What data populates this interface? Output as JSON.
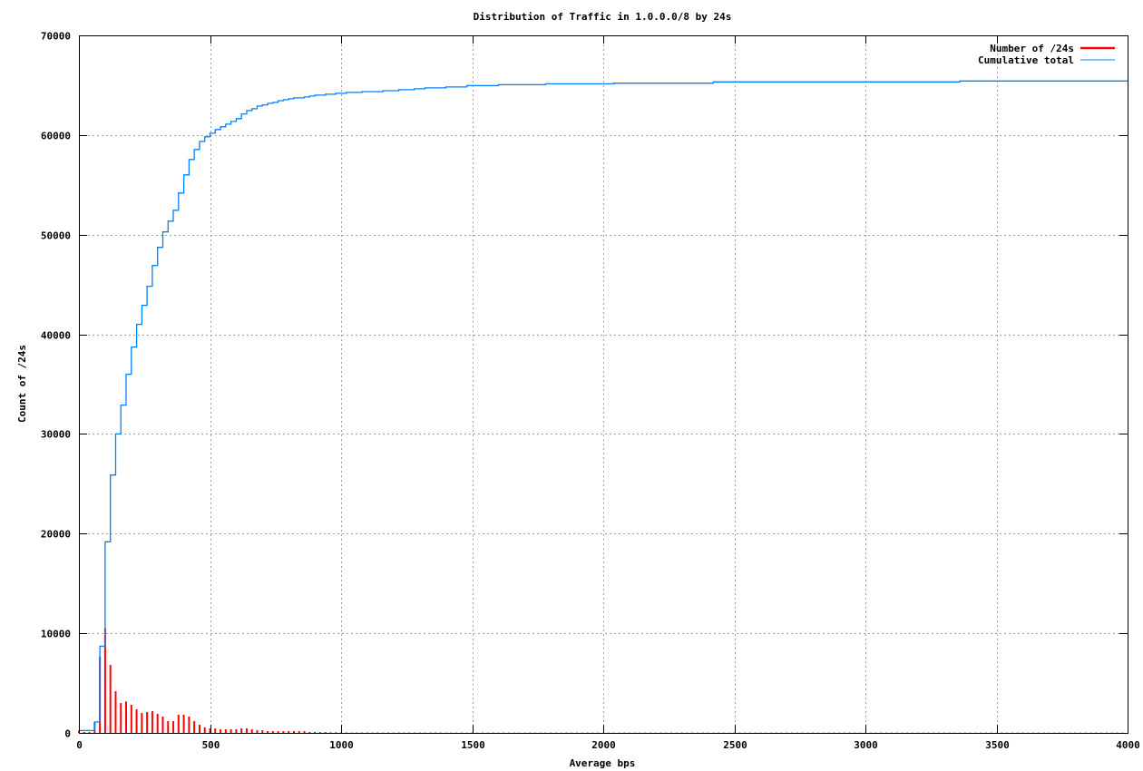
{
  "chart_data": {
    "type": "bar",
    "title": "Distribution of Traffic in 1.0.0.0/8 by 24s",
    "xlabel": "Average bps",
    "ylabel": "Count of /24s",
    "xlim": [
      0,
      4000
    ],
    "ylim": [
      0,
      70000
    ],
    "x_ticks": [
      "0",
      "500",
      "1000",
      "1500",
      "2000",
      "2500",
      "3000",
      "3500",
      "4000"
    ],
    "y_ticks": [
      "0",
      "10000",
      "20000",
      "30000",
      "40000",
      "50000",
      "60000",
      "70000"
    ],
    "grid": true,
    "legend_position": "top-right",
    "series": [
      {
        "name": "Number of /24s",
        "style": "impulses",
        "color": "#ff0000",
        "bin_width": 20,
        "x_start": 0,
        "values": [
          240,
          90,
          90,
          1090,
          7640,
          10510,
          6820,
          4180,
          3000,
          3150,
          2820,
          2360,
          2000,
          2090,
          2180,
          1910,
          1640,
          1180,
          1180,
          1820,
          1820,
          1640,
          1180,
          820,
          550,
          450,
          450,
          360,
          360,
          360,
          360,
          450,
          450,
          360,
          270,
          270,
          180,
          180,
          180,
          180,
          180,
          180,
          180,
          180,
          90,
          90,
          90,
          90,
          60,
          60,
          40,
          40,
          40,
          40,
          40,
          40,
          40,
          40,
          40,
          40,
          40,
          40,
          40,
          40,
          40,
          40,
          40,
          40,
          40,
          40,
          30,
          30,
          30,
          30,
          30,
          30,
          30,
          30,
          30,
          30,
          30,
          30,
          30,
          30,
          30,
          30,
          30,
          30,
          30,
          30,
          30,
          30,
          30,
          30,
          30,
          30,
          30,
          30,
          30,
          30,
          30,
          30,
          30,
          30,
          30,
          30,
          30,
          30,
          30,
          30,
          30,
          30,
          30,
          30,
          30,
          30,
          30,
          30,
          30,
          30,
          30,
          30,
          30,
          30,
          30,
          30,
          30,
          30,
          30,
          30,
          30,
          30,
          30,
          30,
          30,
          30,
          30,
          30,
          30,
          30,
          30,
          30,
          30,
          30,
          30,
          30,
          30,
          30,
          30,
          30,
          30,
          30,
          30,
          30,
          30,
          30,
          30,
          30,
          30,
          30,
          30,
          30,
          30,
          30,
          30,
          30,
          30,
          30,
          30,
          30,
          30,
          30,
          30,
          30,
          30,
          30,
          30,
          30,
          30,
          30,
          30,
          30,
          30,
          30,
          30,
          30,
          30,
          30,
          30,
          30,
          30,
          30,
          30,
          30,
          30,
          30,
          30,
          30,
          30,
          30
        ]
      },
      {
        "name": "Cumulative total",
        "style": "steps",
        "color": "#0080ff",
        "points": [
          [
            0,
            240
          ],
          [
            60,
            1100
          ],
          [
            80,
            8700
          ],
          [
            100,
            19180
          ],
          [
            120,
            25880
          ],
          [
            140,
            30000
          ],
          [
            160,
            32900
          ],
          [
            180,
            35990
          ],
          [
            200,
            38720
          ],
          [
            220,
            41000
          ],
          [
            240,
            42910
          ],
          [
            260,
            44820
          ],
          [
            280,
            46910
          ],
          [
            300,
            48730
          ],
          [
            320,
            50270
          ],
          [
            340,
            51360
          ],
          [
            360,
            52450
          ],
          [
            380,
            54180
          ],
          [
            400,
            56000
          ],
          [
            420,
            57550
          ],
          [
            440,
            58550
          ],
          [
            460,
            59360
          ],
          [
            480,
            59820
          ],
          [
            500,
            60180
          ],
          [
            520,
            60550
          ],
          [
            540,
            60820
          ],
          [
            560,
            61090
          ],
          [
            580,
            61360
          ],
          [
            600,
            61640
          ],
          [
            620,
            62120
          ],
          [
            640,
            62450
          ],
          [
            660,
            62640
          ],
          [
            680,
            62910
          ],
          [
            700,
            63030
          ],
          [
            720,
            63180
          ],
          [
            740,
            63270
          ],
          [
            760,
            63450
          ],
          [
            780,
            63550
          ],
          [
            800,
            63640
          ],
          [
            820,
            63730
          ],
          [
            860,
            63820
          ],
          [
            880,
            63910
          ],
          [
            900,
            64000
          ],
          [
            940,
            64090
          ],
          [
            980,
            64180
          ],
          [
            1020,
            64270
          ],
          [
            1080,
            64360
          ],
          [
            1160,
            64450
          ],
          [
            1220,
            64550
          ],
          [
            1280,
            64640
          ],
          [
            1320,
            64730
          ],
          [
            1400,
            64820
          ],
          [
            1480,
            64960
          ],
          [
            1600,
            65050
          ],
          [
            1780,
            65140
          ],
          [
            2040,
            65200
          ],
          [
            2420,
            65330
          ],
          [
            3360,
            65420
          ],
          [
            4000,
            65420
          ]
        ]
      }
    ]
  }
}
